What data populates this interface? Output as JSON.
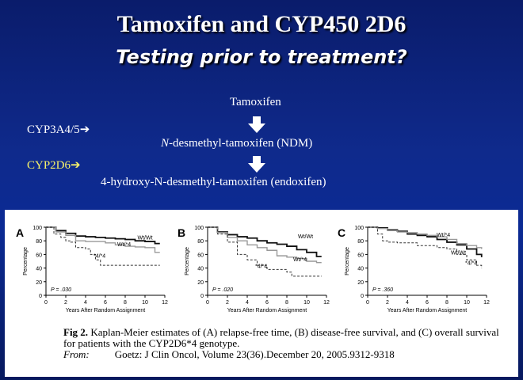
{
  "slide": {
    "title": "Tamoxifen and CYP450 2D6",
    "subtitle": "Testing prior to treatment?"
  },
  "pathway": {
    "drug": "Tamoxifen",
    "enzyme1": "CYP3A4/5",
    "metabolite1_prefix": "N",
    "metabolite1_rest": "-desmethyl-tamoxifen (NDM)",
    "enzyme2": "CYP2D6",
    "metabolite2": "4-hydroxy-N-desmethyl-tamoxifen (endoxifen)",
    "enzyme2_color": "#f7f26a"
  },
  "figure": {
    "caption_bold": "Fig 2.",
    "caption_text": "Kaplan-Meier estimates of (A) relapse-free time, (B) disease-free survival, and (C) overall survival for patients with the CYP2D6*4 genotype.",
    "from_label": "From:",
    "citation": "Goetz: J Clin Oncol, Volume 23(36).December 20, 2005.9312-9318"
  },
  "chart_data": [
    {
      "type": "line",
      "panel": "A",
      "ylabel": "Percentage",
      "xlabel": "Years After Random Assignment",
      "xlim": [
        0,
        12
      ],
      "ylim": [
        0,
        100
      ],
      "xticks": [
        0,
        2,
        4,
        6,
        8,
        10,
        12
      ],
      "yticks": [
        0,
        20,
        40,
        60,
        80,
        100
      ],
      "p_value": "P = .030",
      "series": [
        {
          "name": "Wt/Wt",
          "style": "thick",
          "x": [
            0,
            1,
            2,
            3,
            4,
            5,
            6,
            7,
            8,
            9,
            10,
            11,
            11.5
          ],
          "y": [
            100,
            95,
            91,
            87,
            86,
            85,
            84,
            83,
            82,
            80,
            79,
            76,
            76
          ]
        },
        {
          "name": "Wt/*4",
          "style": "gray",
          "x": [
            0,
            1,
            2,
            3,
            4,
            6,
            7,
            8,
            9,
            10,
            11,
            11.5
          ],
          "y": [
            100,
            93,
            88,
            80,
            79,
            77,
            74,
            72,
            71,
            70,
            63,
            63
          ]
        },
        {
          "name": "*4/*4",
          "style": "dashed",
          "x": [
            0,
            0.8,
            1.5,
            2,
            2.5,
            3,
            4,
            4.5,
            5,
            5.5,
            11.5
          ],
          "y": [
            100,
            90,
            85,
            80,
            78,
            70,
            68,
            60,
            52,
            44,
            44
          ]
        }
      ]
    },
    {
      "type": "line",
      "panel": "B",
      "ylabel": "Percentage",
      "xlabel": "Years After Random Assignment",
      "xlim": [
        0,
        12
      ],
      "ylim": [
        0,
        100
      ],
      "xticks": [
        0,
        2,
        4,
        6,
        8,
        10,
        12
      ],
      "yticks": [
        0,
        20,
        40,
        60,
        80,
        100
      ],
      "p_value": "P = .020",
      "series": [
        {
          "name": "Wt/Wt",
          "style": "thick",
          "x": [
            0,
            1,
            2,
            3,
            4,
            5,
            6,
            7,
            8,
            9,
            10,
            11,
            11.5
          ],
          "y": [
            100,
            93,
            89,
            86,
            84,
            80,
            77,
            75,
            72,
            67,
            63,
            57,
            57
          ]
        },
        {
          "name": "Wt/*4",
          "style": "gray",
          "x": [
            0,
            1,
            2,
            3,
            4,
            5,
            6,
            7,
            8,
            9,
            10,
            11,
            11.5
          ],
          "y": [
            100,
            92,
            85,
            80,
            74,
            70,
            66,
            58,
            56,
            54,
            50,
            48,
            48
          ]
        },
        {
          "name": "*4/*4",
          "style": "dashed",
          "x": [
            0,
            1,
            2,
            3,
            4,
            5,
            6,
            8,
            8.5,
            11.5
          ],
          "y": [
            100,
            90,
            78,
            60,
            52,
            44,
            38,
            34,
            28,
            28
          ]
        }
      ]
    },
    {
      "type": "line",
      "panel": "C",
      "ylabel": "Percentage",
      "xlabel": "Years After Random Assignment",
      "xlim": [
        0,
        12
      ],
      "ylim": [
        0,
        100
      ],
      "xticks": [
        0,
        2,
        4,
        6,
        8,
        10,
        12
      ],
      "yticks": [
        0,
        20,
        40,
        60,
        80,
        100
      ],
      "p_value": "P = .360",
      "series": [
        {
          "name": "Wt/Wt",
          "style": "thick",
          "x": [
            0,
            1,
            2,
            3,
            4,
            5,
            6,
            7,
            8,
            9,
            10,
            11,
            11.5
          ],
          "y": [
            100,
            99,
            96,
            94,
            90,
            88,
            86,
            82,
            78,
            74,
            68,
            60,
            56
          ]
        },
        {
          "name": "Wt/*4",
          "style": "gray",
          "x": [
            0,
            1,
            2,
            3,
            4,
            5,
            6,
            7,
            8,
            9,
            10,
            11,
            11.5
          ],
          "y": [
            100,
            98,
            95,
            93,
            92,
            90,
            88,
            86,
            82,
            76,
            73,
            70,
            68
          ]
        },
        {
          "name": "*4/*4",
          "style": "dashed",
          "x": [
            0,
            1,
            1.5,
            2,
            3,
            5,
            7,
            8,
            9,
            10,
            11,
            11.5
          ],
          "y": [
            100,
            90,
            80,
            78,
            77,
            73,
            70,
            68,
            60,
            52,
            44,
            40
          ]
        }
      ]
    }
  ]
}
